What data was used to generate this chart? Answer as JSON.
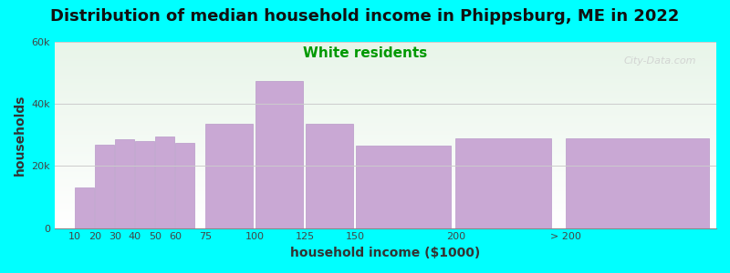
{
  "title": "Distribution of median household income in Phippsburg, ME in 2022",
  "subtitle": "White residents",
  "xlabel": "household income ($1000)",
  "ylabel": "households",
  "background_color": "#00FFFF",
  "bar_color": "#C9A8D4",
  "bar_edge_color": "#b898c8",
  "categories": [
    "10",
    "20",
    "30",
    "40",
    "50",
    "60",
    "75",
    "100",
    "125",
    "150",
    "200",
    "> 200"
  ],
  "values": [
    13000,
    27000,
    28500,
    28000,
    29500,
    27500,
    33500,
    47500,
    33500,
    26500,
    29000,
    29000
  ],
  "x_positions": [
    10,
    20,
    30,
    40,
    50,
    60,
    75,
    100,
    125,
    150,
    200,
    255
  ],
  "widths": [
    9.5,
    9.5,
    9.5,
    9.5,
    9.5,
    9.5,
    23.75,
    23.75,
    23.75,
    47.5,
    47.5,
    71.25
  ],
  "xtick_positions": [
    10,
    20,
    30,
    40,
    50,
    60,
    75,
    100,
    125,
    150,
    200,
    255
  ],
  "xlim": [
    0,
    330
  ],
  "ylim": [
    0,
    60000
  ],
  "yticks": [
    0,
    20000,
    40000,
    60000
  ],
  "ytick_labels": [
    "0",
    "20k",
    "40k",
    "60k"
  ],
  "title_fontsize": 13,
  "subtitle_fontsize": 11,
  "subtitle_color": "#009900",
  "axis_label_fontsize": 10,
  "tick_fontsize": 8,
  "watermark_text": "City-Data.com",
  "watermark_color": "#cccccc"
}
